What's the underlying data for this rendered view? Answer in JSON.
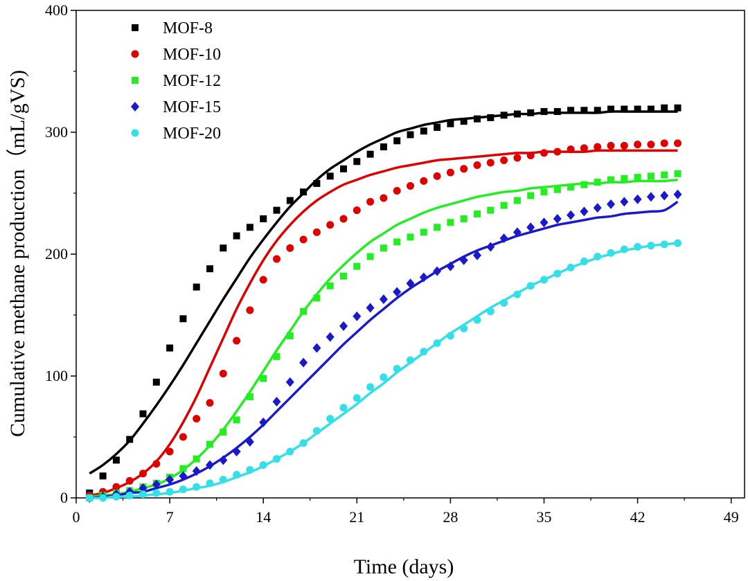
{
  "chart_data": {
    "type": "scatter",
    "title": "",
    "xlabel": "Time (days)",
    "ylabel": "Cumulative methane production（mL/gVS)",
    "xlim": [
      0,
      50
    ],
    "ylim": [
      0,
      400
    ],
    "xticks": [
      0,
      7,
      14,
      21,
      28,
      35,
      42,
      49
    ],
    "yticks": [
      0,
      100,
      200,
      300,
      400
    ],
    "grid": false,
    "legend_position": "top-left",
    "series": [
      {
        "name": "MOF-8",
        "color": "#000000",
        "marker": "square",
        "x": [
          1,
          2,
          3,
          4,
          5,
          6,
          7,
          8,
          9,
          10,
          11,
          12,
          13,
          14,
          15,
          16,
          17,
          18,
          19,
          20,
          21,
          22,
          23,
          24,
          25,
          26,
          27,
          28,
          29,
          30,
          31,
          32,
          33,
          34,
          35,
          36,
          37,
          38,
          39,
          40,
          41,
          42,
          43,
          44,
          45
        ],
        "y": [
          4,
          18,
          31,
          48,
          69,
          95,
          123,
          147,
          173,
          188,
          205,
          215,
          222,
          229,
          236,
          244,
          251,
          258,
          264,
          270,
          276,
          282,
          288,
          293,
          298,
          301,
          304,
          307,
          309,
          311,
          312,
          314,
          315,
          316,
          317,
          317,
          318,
          318,
          318,
          319,
          319,
          319,
          319,
          320,
          320
        ],
        "fit": [
          20,
          27,
          36,
          47,
          61,
          76,
          92,
          109,
          127,
          145,
          163,
          180,
          197,
          212,
          226,
          239,
          250,
          261,
          270,
          277,
          284,
          290,
          295,
          300,
          303,
          306,
          308,
          310,
          311,
          312,
          313,
          314,
          315,
          315,
          316,
          316,
          316,
          316,
          316,
          317,
          317,
          317,
          317,
          317,
          317
        ]
      },
      {
        "name": "MOF-10",
        "color": "#e00000",
        "marker": "circle",
        "x": [
          1,
          2,
          3,
          4,
          5,
          6,
          7,
          8,
          9,
          10,
          11,
          12,
          13,
          14,
          15,
          16,
          17,
          18,
          19,
          20,
          21,
          22,
          23,
          24,
          25,
          26,
          27,
          28,
          29,
          30,
          31,
          32,
          33,
          34,
          35,
          36,
          37,
          38,
          39,
          40,
          41,
          42,
          43,
          44,
          45
        ],
        "y": [
          2,
          5,
          9,
          14,
          20,
          28,
          38,
          50,
          65,
          78,
          102,
          129,
          154,
          179,
          196,
          205,
          212,
          218,
          224,
          229,
          236,
          243,
          246,
          252,
          256,
          260,
          264,
          267,
          270,
          273,
          275,
          277,
          279,
          281,
          283,
          284,
          286,
          287,
          288,
          289,
          289,
          290,
          290,
          291,
          291
        ],
        "fit": [
          2,
          4,
          8,
          13,
          20,
          30,
          44,
          62,
          83,
          107,
          131,
          155,
          176,
          195,
          211,
          224,
          235,
          244,
          251,
          257,
          261,
          265,
          268,
          271,
          273,
          275,
          277,
          278,
          279,
          280,
          281,
          282,
          283,
          283,
          284,
          284,
          284,
          284,
          285,
          285,
          285,
          285,
          285,
          285,
          285
        ]
      },
      {
        "name": "MOF-12",
        "color": "#22ee22",
        "marker": "square",
        "x": [
          1,
          2,
          3,
          4,
          5,
          6,
          7,
          8,
          9,
          10,
          11,
          12,
          13,
          14,
          15,
          16,
          17,
          18,
          19,
          20,
          21,
          22,
          23,
          24,
          25,
          26,
          27,
          28,
          29,
          30,
          31,
          32,
          33,
          34,
          35,
          36,
          37,
          38,
          39,
          40,
          41,
          42,
          43,
          44,
          45
        ],
        "y": [
          0,
          2,
          4,
          6,
          9,
          12,
          17,
          24,
          32,
          44,
          54,
          64,
          83,
          98,
          116,
          133,
          153,
          164,
          174,
          182,
          190,
          198,
          205,
          210,
          214,
          218,
          222,
          226,
          229,
          233,
          236,
          240,
          244,
          248,
          251,
          253,
          255,
          257,
          259,
          261,
          262,
          263,
          264,
          265,
          266
        ],
        "fit": [
          1,
          2,
          3,
          5,
          8,
          11,
          16,
          23,
          32,
          43,
          56,
          71,
          87,
          104,
          121,
          137,
          153,
          167,
          180,
          191,
          201,
          210,
          217,
          224,
          229,
          234,
          238,
          241,
          244,
          247,
          249,
          251,
          252,
          254,
          255,
          256,
          257,
          258,
          258,
          259,
          259,
          260,
          260,
          260,
          261
        ]
      },
      {
        "name": "MOF-15",
        "color": "#1a1acc",
        "marker": "diamond",
        "x": [
          1,
          2,
          3,
          4,
          5,
          6,
          7,
          8,
          9,
          10,
          11,
          12,
          13,
          14,
          15,
          16,
          17,
          18,
          19,
          20,
          21,
          22,
          23,
          24,
          25,
          26,
          27,
          28,
          29,
          30,
          31,
          32,
          33,
          34,
          35,
          36,
          37,
          38,
          39,
          40,
          41,
          42,
          43,
          44,
          45
        ],
        "y": [
          0,
          1,
          3,
          5,
          8,
          11,
          15,
          18,
          22,
          27,
          31,
          38,
          46,
          62,
          79,
          95,
          111,
          123,
          132,
          141,
          149,
          156,
          163,
          169,
          176,
          181,
          186,
          190,
          195,
          199,
          206,
          213,
          218,
          222,
          226,
          229,
          232,
          235,
          238,
          241,
          243,
          245,
          247,
          248,
          249
        ],
        "fit": [
          0,
          1,
          2,
          4,
          5,
          8,
          11,
          15,
          20,
          26,
          33,
          41,
          50,
          60,
          71,
          82,
          93,
          104,
          115,
          126,
          136,
          146,
          155,
          164,
          172,
          179,
          186,
          192,
          198,
          203,
          207,
          211,
          215,
          218,
          221,
          224,
          226,
          228,
          230,
          231,
          233,
          234,
          235,
          236,
          243
        ]
      },
      {
        "name": "MOF-20",
        "color": "#33e0e8",
        "marker": "circle",
        "x": [
          1,
          2,
          3,
          4,
          5,
          6,
          7,
          8,
          9,
          10,
          11,
          12,
          13,
          14,
          15,
          16,
          17,
          18,
          19,
          20,
          21,
          22,
          23,
          24,
          25,
          26,
          27,
          28,
          29,
          30,
          31,
          32,
          33,
          34,
          35,
          36,
          37,
          38,
          39,
          40,
          41,
          42,
          43,
          44,
          45
        ],
        "y": [
          0,
          0,
          1,
          2,
          3,
          4,
          5,
          7,
          9,
          12,
          15,
          19,
          23,
          27,
          32,
          38,
          45,
          55,
          65,
          74,
          82,
          91,
          99,
          106,
          113,
          120,
          127,
          133,
          139,
          146,
          153,
          160,
          167,
          174,
          179,
          184,
          189,
          194,
          198,
          201,
          204,
          206,
          207,
          208,
          209
        ],
        "fit": [
          0,
          0,
          1,
          1,
          2,
          3,
          4,
          6,
          8,
          10,
          13,
          17,
          21,
          26,
          32,
          38,
          45,
          53,
          61,
          69,
          77,
          86,
          94,
          103,
          111,
          119,
          127,
          135,
          142,
          149,
          156,
          162,
          168,
          174,
          179,
          184,
          189,
          193,
          197,
          200,
          203,
          205,
          207,
          208,
          209
        ]
      }
    ]
  }
}
